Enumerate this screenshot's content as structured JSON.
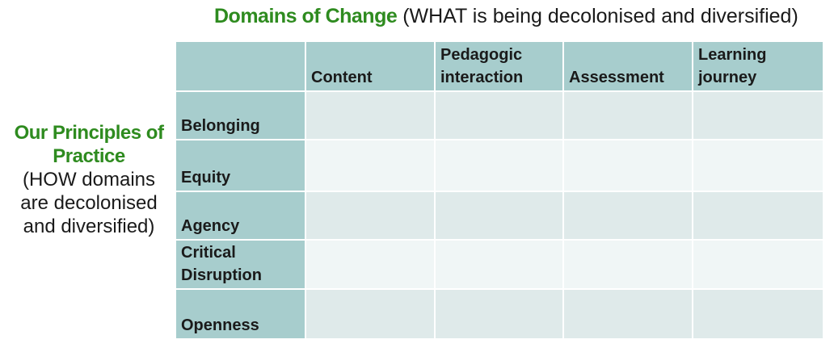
{
  "top_title": {
    "accent": "Domains of Change",
    "rest": " (WHAT is being decolonised and diversified)"
  },
  "side_title": {
    "accent_line1": "Our Principles of",
    "accent_line2": "Practice",
    "sub_line1": "(HOW domains",
    "sub_line2": "are decolonised",
    "sub_line3": "and diversified)"
  },
  "columns": [
    {
      "line1": "",
      "line2": "Content"
    },
    {
      "line1": "Pedagogic",
      "line2": "interaction"
    },
    {
      "line1": "",
      "line2": "Assessment"
    },
    {
      "line1": "Learning",
      "line2": "journey"
    }
  ],
  "rows": [
    {
      "line1": "",
      "line2": "Belonging"
    },
    {
      "line1": "",
      "line2": "Equity"
    },
    {
      "line1": "",
      "line2": "Agency"
    },
    {
      "line1": "Critical",
      "line2": "Disruption"
    },
    {
      "line1": "",
      "line2": "Openness"
    }
  ],
  "colors": {
    "accent_green": "#2e8b1f",
    "header_teal": "#a7cdcd",
    "cell_dark": "#dfeaea",
    "cell_light": "#f0f6f6"
  }
}
